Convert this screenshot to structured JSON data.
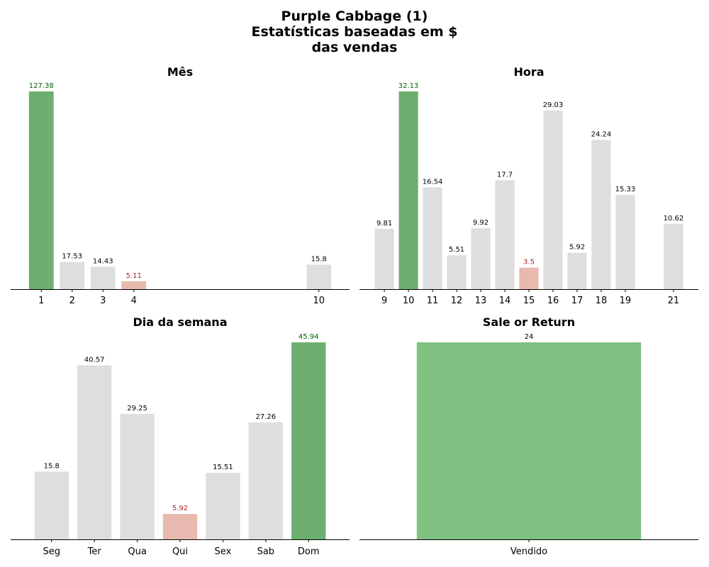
{
  "title": {
    "line1": "Purple Cabbage (1)",
    "line2": "Estatísticas baseadas em $",
    "line3": "das vendas"
  },
  "colors": {
    "max": "#6daf6e",
    "min": "#e8b9ae",
    "neutral": "#dedede",
    "single": "#7fc181",
    "label_max": "#006400",
    "label_min": "#b22222",
    "label_default": "#000000"
  },
  "chart_data": [
    {
      "type": "bar",
      "title": "Mês",
      "x_scale": "linear",
      "xlim": [
        0.5,
        10.5
      ],
      "categories": [
        "1",
        "2",
        "3",
        "4",
        "10"
      ],
      "x": [
        1,
        2,
        3,
        4,
        10
      ],
      "values": [
        127.38,
        17.53,
        14.43,
        5.11,
        15.8
      ],
      "ylim": [
        0,
        127.38
      ],
      "highlight": {
        "max_index": 0,
        "min_index": 3
      },
      "grid": false
    },
    {
      "type": "bar",
      "title": "Hora",
      "x_scale": "linear",
      "xlim": [
        8.6,
        21.4
      ],
      "categories": [
        "9",
        "10",
        "11",
        "12",
        "13",
        "14",
        "15",
        "16",
        "17",
        "18",
        "19",
        "21"
      ],
      "x": [
        9,
        10,
        11,
        12,
        13,
        14,
        15,
        16,
        17,
        18,
        19,
        21
      ],
      "values": [
        9.81,
        32.13,
        16.54,
        5.51,
        9.92,
        17.7,
        3.5,
        29.03,
        5.92,
        24.24,
        15.33,
        10.62
      ],
      "ylim": [
        0,
        32.13
      ],
      "highlight": {
        "max_index": 1,
        "min_index": 6
      },
      "grid": false
    },
    {
      "type": "bar",
      "title": "Dia da semana",
      "x_scale": "category",
      "categories": [
        "Seg",
        "Ter",
        "Qua",
        "Qui",
        "Sex",
        "Sab",
        "Dom"
      ],
      "values": [
        15.8,
        40.57,
        29.25,
        5.92,
        15.51,
        27.26,
        45.94
      ],
      "ylim": [
        0,
        45.94
      ],
      "highlight": {
        "max_index": 6,
        "min_index": 3
      },
      "grid": false
    },
    {
      "type": "bar",
      "title": "Sale or Return",
      "x_scale": "category",
      "categories": [
        "Vendido"
      ],
      "values": [
        24
      ],
      "ylim": [
        0,
        24
      ],
      "highlight": {
        "max_index": -1,
        "min_index": -1
      },
      "grid": false
    }
  ]
}
